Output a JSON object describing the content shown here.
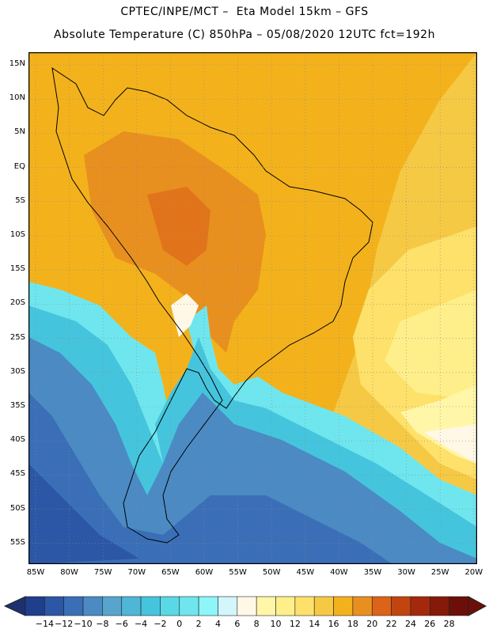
{
  "header": {
    "line1": "CPTEC/INPE/MCT –  Eta Model 15km – GFS",
    "line2": "Absolute Temperature (C) 850hPa – 05/08/2020 12UTC fct=192h"
  },
  "map": {
    "lat_labels": [
      "15N",
      "10N",
      "5N",
      "EQ",
      "5S",
      "10S",
      "15S",
      "20S",
      "25S",
      "30S",
      "35S",
      "40S",
      "45S",
      "50S",
      "55S"
    ],
    "lon_labels": [
      "85W",
      "80W",
      "75W",
      "70W",
      "65W",
      "60W",
      "55W",
      "50W",
      "45W",
      "40W",
      "35W",
      "30W",
      "25W",
      "20W"
    ],
    "grid": "dotted"
  },
  "colorbar": {
    "labels": [
      "-14",
      "-12",
      "-10",
      "-8",
      "-6",
      "-4",
      "-2",
      "0",
      "2",
      "4",
      "6",
      "8",
      "10",
      "12",
      "14",
      "16",
      "18",
      "20",
      "22",
      "24",
      "26",
      "28"
    ],
    "colors": [
      "#1f3e8c",
      "#2b57a6",
      "#3a6fb7",
      "#4c8ac4",
      "#57a5cf",
      "#4fb6d6",
      "#45c5dd",
      "#5ad8e6",
      "#6fe6ee",
      "#8ef5f9",
      "#d2f6fb",
      "#fff8e6",
      "#fff6a8",
      "#feef8a",
      "#fde16a",
      "#f6c945",
      "#f3b21c",
      "#e8901f",
      "#dc6317",
      "#c24510",
      "#a4290c",
      "#851a0a",
      "#6b0f08"
    ],
    "triangle_left": "#1f3070",
    "triangle_right": "#6b0f08"
  }
}
